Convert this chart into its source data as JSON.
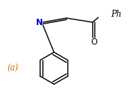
{
  "background_color": "#ffffff",
  "text_color": "#000000",
  "N_color": "#0000cd",
  "label_color": "#cc6600",
  "label_text": "(a)",
  "Ph_text": "Ph",
  "O_text": "O",
  "N_text": "N",
  "fig_width": 1.98,
  "fig_height": 1.38,
  "dpi": 100,
  "lw": 1.1
}
